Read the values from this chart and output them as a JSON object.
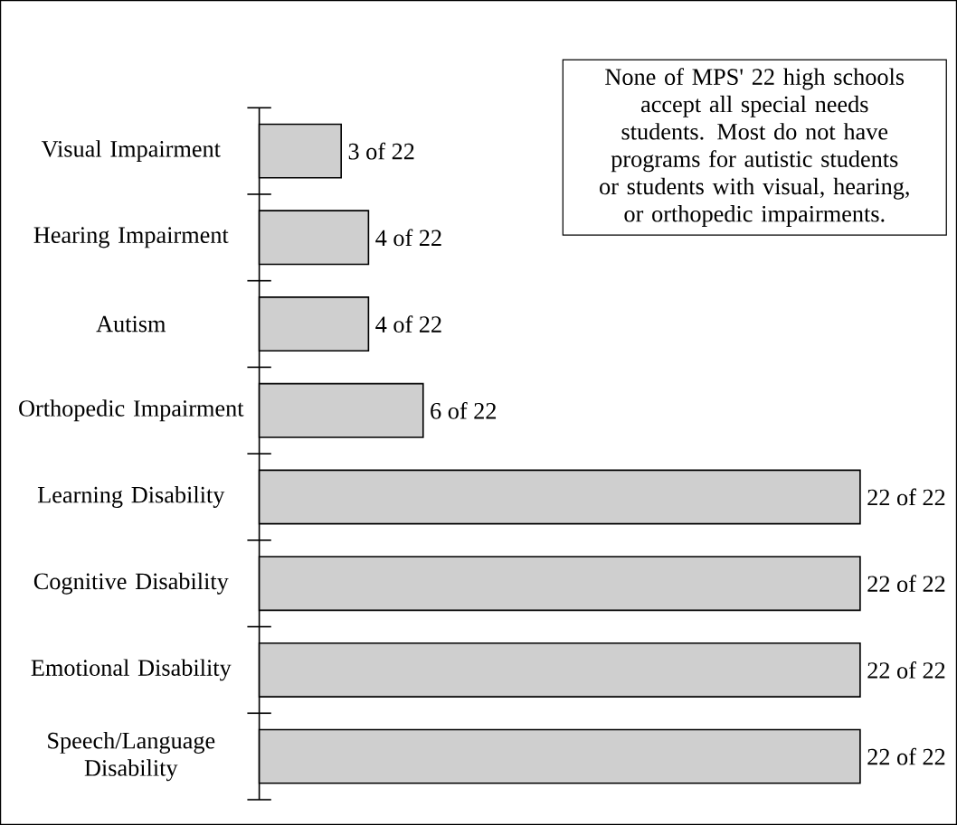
{
  "chart_data": {
    "type": "bar",
    "orientation": "horizontal",
    "categories": [
      "Visual Impairment",
      "Hearing Impairment",
      "Autism",
      "Orthopedic Impairment",
      "Learning Disability",
      "Cognitive Disability",
      "Emotional Disability",
      "Speech/Language Disability"
    ],
    "values": [
      3,
      4,
      4,
      6,
      22,
      22,
      22,
      22
    ],
    "value_labels": [
      "3 of 22",
      "4 of 22",
      "4 of 22",
      "6 of 22",
      "22 of 22",
      "22 of 22",
      "22 of 22",
      "22 of 22"
    ],
    "xlim": [
      0,
      22
    ],
    "color": "#cfcfcf",
    "annotations": [
      "None of MPS' 22 high schools accept all special needs students. Most do not have programs for autistic students or students with visual, hearing, or orthopedic impairments."
    ]
  }
}
